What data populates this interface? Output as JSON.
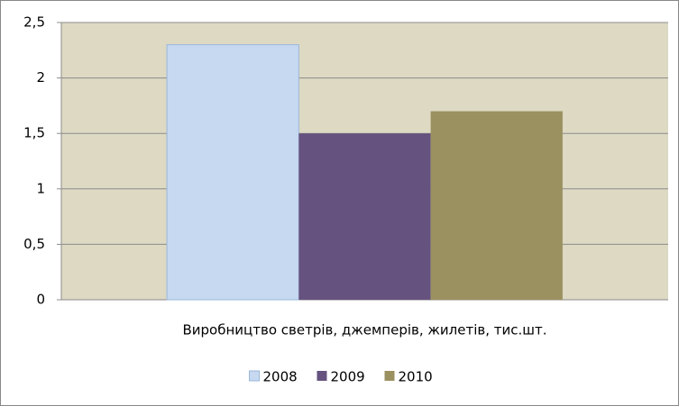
{
  "chart_data": {
    "type": "bar",
    "categories": [
      "Виробництво светрів, джемперів, жилетів, тис.шт."
    ],
    "series": [
      {
        "name": "2008",
        "color": "#c6d9f1",
        "values": [
          2.3
        ]
      },
      {
        "name": "2009",
        "color": "#66527f",
        "values": [
          1.5
        ]
      },
      {
        "name": "2010",
        "color": "#9b9060",
        "values": [
          1.7
        ]
      }
    ],
    "ylim": [
      0,
      2.5
    ],
    "yticks": [
      0,
      {
        "value": 0.5,
        "label": "0,5"
      },
      1,
      {
        "value": 1.5,
        "label": "1,5"
      },
      2,
      {
        "value": 2.5,
        "label": "2,5"
      }
    ],
    "grid": true,
    "legend": "bottom"
  }
}
